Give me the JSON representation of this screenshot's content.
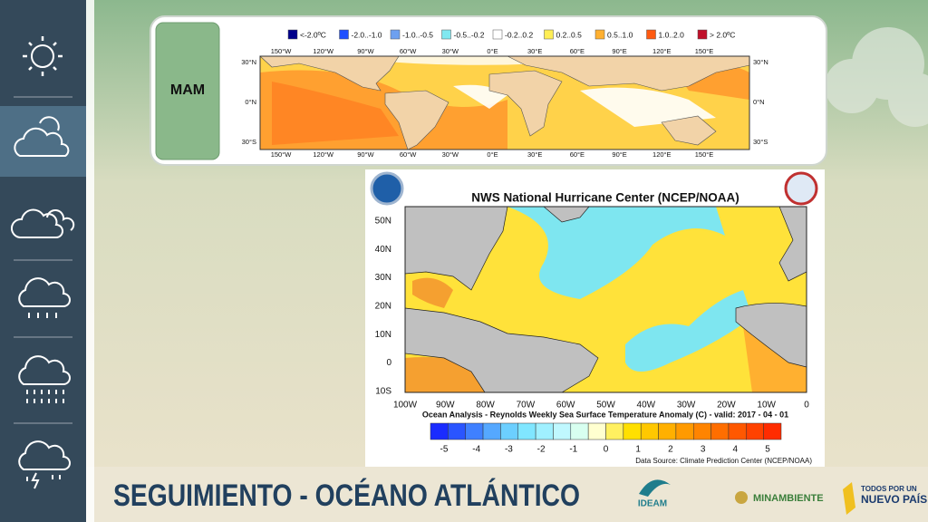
{
  "tab": {
    "label": "MAM"
  },
  "top_map": {
    "legend": [
      {
        "label": "<-2.0ºC",
        "color": "#00008b"
      },
      {
        "label": "-2.0..-1.0",
        "color": "#2050ff"
      },
      {
        "label": "-1.0..-0.5",
        "color": "#6ea0f0"
      },
      {
        "label": "-0.5..-0.2",
        "color": "#80e8f0"
      },
      {
        "label": "-0.2..0.2",
        "color": "#ffffff"
      },
      {
        "label": "0.2..0.5",
        "color": "#ffee55"
      },
      {
        "label": "0.5..1.0",
        "color": "#ffb030"
      },
      {
        "label": "1.0..2.0",
        "color": "#ff5a10"
      },
      {
        "label": "> 2.0ºC",
        "color": "#c0102a"
      }
    ],
    "lon_labels": [
      "150°W",
      "120°W",
      "90°W",
      "60°W",
      "30°W",
      "0°E",
      "30°E",
      "60°E",
      "90°E",
      "120°E",
      "150°E"
    ],
    "lat_labels": [
      "30°N",
      "0°N",
      "30°S"
    ]
  },
  "nhc_map": {
    "title": "NWS National Hurricane Center (NCEP/NOAA)",
    "lat_labels": [
      "50N",
      "40N",
      "30N",
      "20N",
      "10N",
      "0",
      "10S"
    ],
    "lon_labels": [
      "100W",
      "90W",
      "80W",
      "70W",
      "60W",
      "50W",
      "40W",
      "30W",
      "20W",
      "10W",
      "0"
    ],
    "caption": "Ocean Analysis - Reynolds Weekly Sea Surface Temperature Anomaly (C) - valid: 2017 - 04 - 01",
    "colorbar_ticks": [
      "-5",
      "-4",
      "-3",
      "-2",
      "-1",
      "0",
      "1",
      "2",
      "3",
      "4",
      "5"
    ],
    "source": "Data Source: Climate Prediction Center (NCEP/NOAA)"
  },
  "footer": {
    "title": "SEGUIMIENTO - OCÉANO ATLÁNTICO",
    "logos": {
      "ideam": "IDEAM",
      "minambiente": "MINAMBIENTE",
      "gov_line1": "TODOS POR UN",
      "gov_line2": "NUEVO PAÍS"
    }
  }
}
